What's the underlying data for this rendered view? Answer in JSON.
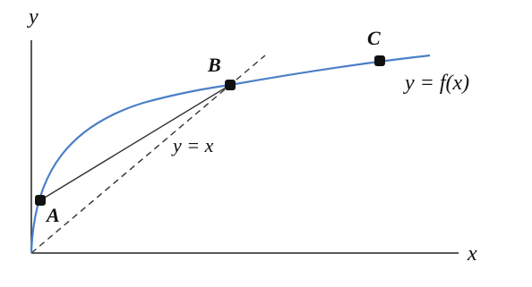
{
  "axes": {
    "y_label": "y",
    "x_label": "x"
  },
  "points": [
    {
      "label": "A"
    },
    {
      "label": "B"
    },
    {
      "label": "C"
    }
  ],
  "curves": {
    "function_label": "y = f(x)",
    "diagonal_label": "y = x"
  }
}
